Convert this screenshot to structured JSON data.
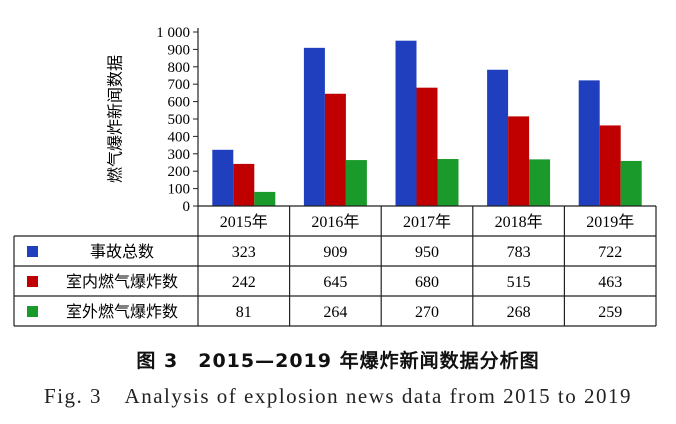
{
  "chart_data": {
    "type": "bar",
    "ylabel": "燃气爆炸新闻数据",
    "ylim": [
      0,
      1000
    ],
    "yticks": [
      "0",
      "100",
      "200",
      "300",
      "400",
      "500",
      "600",
      "700",
      "800",
      "900",
      "1 000"
    ],
    "categories": [
      "2015年",
      "2016年",
      "2017年",
      "2018年",
      "2019年"
    ],
    "series": [
      {
        "name": "事故总数",
        "color": "#1f3fbf",
        "values": [
          323,
          909,
          950,
          783,
          722
        ]
      },
      {
        "name": "室内燃气爆炸数",
        "color": "#c00000",
        "values": [
          242,
          645,
          680,
          515,
          463
        ]
      },
      {
        "name": "室外燃气爆炸数",
        "color": "#1a9a2a",
        "values": [
          81,
          264,
          270,
          268,
          259
        ]
      }
    ],
    "grid": false,
    "data_table": true
  },
  "caption": {
    "cn": "图 3　2015—2019 年爆炸新闻数据分析图",
    "en": "Fig. 3　Analysis of explosion news data from 2015 to 2019"
  }
}
